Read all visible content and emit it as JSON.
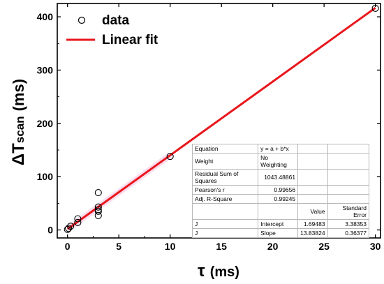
{
  "chart_data": {
    "type": "scatter",
    "x_label": "τ",
    "x_unit": "(ms)",
    "y_label_symbol": "ΔT",
    "y_label_subscript": "scan",
    "y_unit": "(ms)",
    "xlim": [
      -1,
      30.5
    ],
    "ylim": [
      -15,
      425
    ],
    "x_ticks": [
      0,
      5,
      10,
      15,
      20,
      25,
      30
    ],
    "y_ticks": [
      0,
      100,
      200,
      300,
      400
    ],
    "legend_position": "top-left",
    "series": [
      {
        "name": "data",
        "style": "open-circle",
        "x": [
          0,
          0.1,
          0.3,
          1,
          1,
          3,
          3,
          3,
          3,
          3,
          10,
          30
        ],
        "y": [
          1,
          3,
          7,
          14,
          21,
          27,
          35,
          38,
          43,
          70,
          138,
          416
        ]
      },
      {
        "name": "Linear fit",
        "style": "line",
        "color": "#e8171c",
        "intercept": 1.69483,
        "slope": 13.83824,
        "x_range": [
          0,
          30
        ]
      }
    ],
    "fit_table": {
      "rows": [
        [
          "Equation",
          "y = a + b*x",
          "",
          ""
        ],
        [
          "Weight",
          "No Weighting",
          "",
          ""
        ],
        [
          "Residual Sum of Squares",
          "1043.48861",
          "",
          ""
        ],
        [
          "Pearson's r",
          "0.99656",
          "",
          ""
        ],
        [
          "Adj. R-Square",
          "0.99245",
          "",
          ""
        ],
        [
          "",
          "",
          "Value",
          "Standard Error"
        ],
        [
          "J",
          "Intercept",
          "1.69483",
          "3.38353"
        ],
        [
          "J",
          "Slope",
          "13.83824",
          "0.36377"
        ]
      ]
    }
  }
}
